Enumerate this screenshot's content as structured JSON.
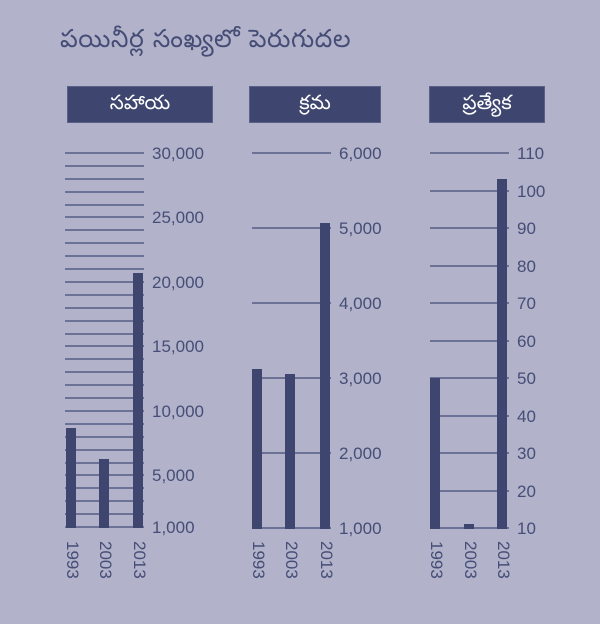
{
  "title": "పయినీర్ల సంఖ్యలో పెరుగుదల",
  "colors": {
    "background": "#b2b3ca",
    "bar": "#3e4670",
    "gridline": "#6c7196",
    "text": "#464d76",
    "header_text": "#ffffff"
  },
  "chart_data": [
    {
      "type": "bar",
      "title": "సహాయ",
      "categories": [
        "1993",
        "2003",
        "2013"
      ],
      "values": [
        8700,
        6300,
        20700
      ],
      "yticks": [
        "30,000",
        "25,000",
        "20,000",
        "15,000",
        "10,000",
        "5,000",
        "1,000"
      ],
      "ylim": [
        1000,
        30000
      ],
      "grid": true,
      "grid_step": 1000
    },
    {
      "type": "bar",
      "title": "క్రమ",
      "categories": [
        "1993",
        "2003",
        "2013"
      ],
      "values": [
        3120,
        3050,
        5070
      ],
      "yticks": [
        "6,000",
        "5,000",
        "4,000",
        "3,000",
        "2,000",
        "1,000"
      ],
      "ylim": [
        1000,
        6000
      ],
      "grid": true,
      "grid_step": 1000
    },
    {
      "type": "bar",
      "title": "ప్రత్యేక",
      "categories": [
        "1993",
        "2003",
        "2013"
      ],
      "values": [
        50,
        11,
        103
      ],
      "yticks": [
        "110",
        "100",
        "90",
        "80",
        "70",
        "60",
        "50",
        "40",
        "30",
        "20",
        "10"
      ],
      "ylim": [
        10,
        110
      ],
      "grid": true,
      "grid_step": 10
    }
  ]
}
